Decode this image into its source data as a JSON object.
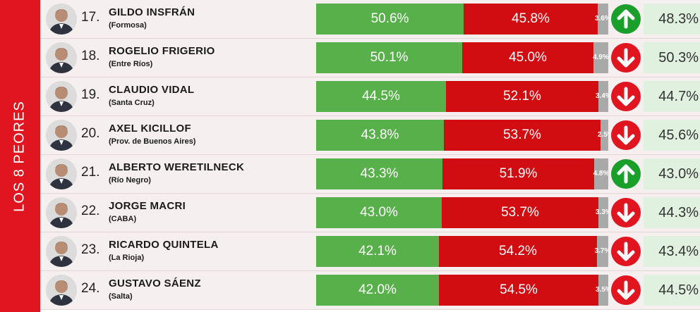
{
  "side_label": "LOS 8 PEORES",
  "colors": {
    "approval": "#58b04a",
    "disapproval": "#d20d12",
    "neutral": "#a9a9a9",
    "trend_up": "#1aa02a",
    "trend_down": "#e0151f",
    "side_strip": "#e0151f"
  },
  "chart_data": {
    "type": "bar",
    "stacked": true,
    "orientation": "horizontal",
    "categories": [
      "GILDO INSFRÁN",
      "ROGELIO FRIGERIO",
      "CLAUDIO VIDAL",
      "AXEL KICILLOF",
      "ALBERTO WERETILNECK",
      "JORGE MACRI",
      "RICARDO QUINTELA",
      "GUSTAVO SÁENZ"
    ],
    "series": [
      {
        "values": [
          50.6,
          50.1,
          44.5,
          43.8,
          43.3,
          43.0,
          42.1,
          42.0
        ]
      },
      {
        "values": [
          45.8,
          45.0,
          52.1,
          53.7,
          51.9,
          53.7,
          54.2,
          54.5
        ]
      },
      {
        "values": [
          3.6,
          4.9,
          3.4,
          2.5,
          4.8,
          3.3,
          3.7,
          3.5
        ]
      }
    ]
  },
  "rows": [
    {
      "rank": "17.",
      "name": "GILDO INSFRÁN",
      "province": "(Formosa)",
      "approve": 50.6,
      "approve_text": "50.6%",
      "disapprove": 45.8,
      "disapprove_text": "45.8%",
      "neutral": 3.6,
      "neutral_text": "3.6%",
      "trend": "up",
      "trend_icon": "arrow-up-icon",
      "previous": "48.3%"
    },
    {
      "rank": "18.",
      "name": "ROGELIO FRIGERIO",
      "province": "(Entre Ríos)",
      "approve": 50.1,
      "approve_text": "50.1%",
      "disapprove": 45.0,
      "disapprove_text": "45.0%",
      "neutral": 4.9,
      "neutral_text": "4.9%",
      "trend": "down",
      "trend_icon": "arrow-down-icon",
      "previous": "50.3%"
    },
    {
      "rank": "19.",
      "name": "CLAUDIO VIDAL",
      "province": "(Santa Cruz)",
      "approve": 44.5,
      "approve_text": "44.5%",
      "disapprove": 52.1,
      "disapprove_text": "52.1%",
      "neutral": 3.4,
      "neutral_text": "3.4%",
      "trend": "down",
      "trend_icon": "arrow-down-icon",
      "previous": "44.7%"
    },
    {
      "rank": "20.",
      "name": "AXEL KICILLOF",
      "province": "(Prov. de Buenos Aires)",
      "approve": 43.8,
      "approve_text": "43.8%",
      "disapprove": 53.7,
      "disapprove_text": "53.7%",
      "neutral": 2.5,
      "neutral_text": "2.5%",
      "trend": "down",
      "trend_icon": "arrow-down-icon",
      "previous": "45.6%"
    },
    {
      "rank": "21.",
      "name": "ALBERTO WERETILNECK",
      "province": "(Río Negro)",
      "approve": 43.3,
      "approve_text": "43.3%",
      "disapprove": 51.9,
      "disapprove_text": "51.9%",
      "neutral": 4.8,
      "neutral_text": "4.8%",
      "trend": "up",
      "trend_icon": "arrow-up-icon",
      "previous": "43.0%"
    },
    {
      "rank": "22.",
      "name": "JORGE MACRI",
      "province": "(CABA)",
      "approve": 43.0,
      "approve_text": "43.0%",
      "disapprove": 53.7,
      "disapprove_text": "53.7%",
      "neutral": 3.3,
      "neutral_text": "3.3%",
      "trend": "down",
      "trend_icon": "arrow-down-icon",
      "previous": "44.3%"
    },
    {
      "rank": "23.",
      "name": "RICARDO QUINTELA",
      "province": "(La Rioja)",
      "approve": 42.1,
      "approve_text": "42.1%",
      "disapprove": 54.2,
      "disapprove_text": "54.2%",
      "neutral": 3.7,
      "neutral_text": "3.7%",
      "trend": "down",
      "trend_icon": "arrow-down-icon",
      "previous": "43.4%"
    },
    {
      "rank": "24.",
      "name": "GUSTAVO SÁENZ",
      "province": "(Salta)",
      "approve": 42.0,
      "approve_text": "42.0%",
      "disapprove": 54.5,
      "disapprove_text": "54.5%",
      "neutral": 3.5,
      "neutral_text": "3.5%",
      "trend": "down",
      "trend_icon": "arrow-down-icon",
      "previous": "44.5%"
    }
  ]
}
